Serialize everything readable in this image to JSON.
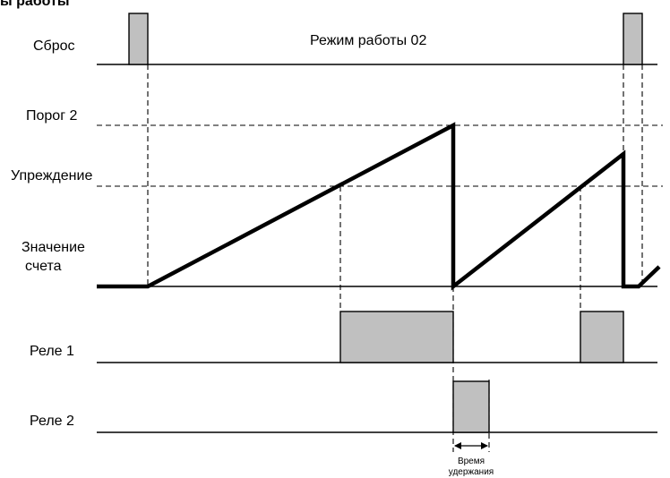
{
  "header": {
    "title_fragment": "ы работы"
  },
  "mode_label": "Режим работы 02",
  "row_labels": {
    "reset": "Сброс",
    "threshold": "Порог 2",
    "advance": "Упреждение",
    "count_line1": "Значение",
    "count_line2": "счета",
    "relay1": "Реле 1",
    "relay2": "Реле 2"
  },
  "hold_time": {
    "line1": "Время",
    "line2": "удержания"
  },
  "colors": {
    "pulse_fill": "#c0c0c0",
    "line": "#000000",
    "background": "#ffffff"
  }
}
